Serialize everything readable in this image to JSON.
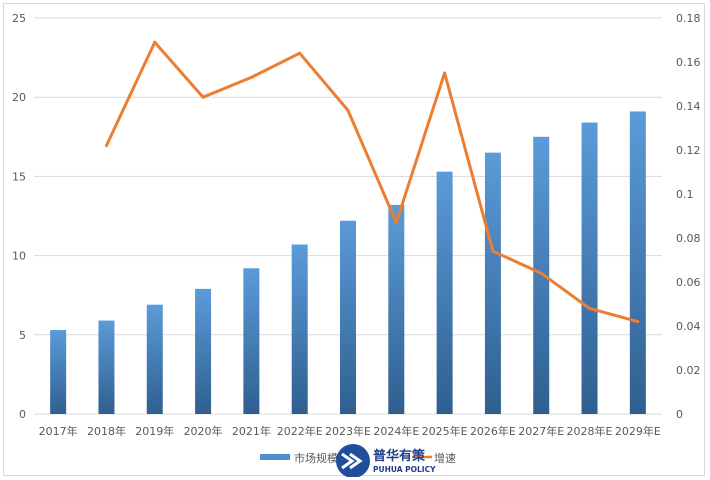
{
  "chart_data": {
    "type": "bar",
    "categories": [
      "2017年",
      "2018年",
      "2019年",
      "2020年",
      "2021年",
      "2022年E",
      "2023年E",
      "2024年E",
      "2025年E",
      "2026年E",
      "2027年E",
      "2028年E",
      "2029年E"
    ],
    "series": [
      {
        "name": "市场规模（亿元）",
        "type": "bar",
        "axis": "left",
        "color": "#4f8fd0",
        "values": [
          5.3,
          5.9,
          6.9,
          7.9,
          9.2,
          10.7,
          12.2,
          13.2,
          15.3,
          16.5,
          17.5,
          18.4,
          19.1
        ]
      },
      {
        "name": "增速",
        "type": "line",
        "axis": "right",
        "color": "#ed7d31",
        "values": [
          null,
          0.122,
          0.169,
          0.144,
          0.153,
          0.164,
          0.138,
          0.087,
          0.155,
          0.074,
          0.064,
          0.048,
          0.042
        ]
      }
    ],
    "y_left": {
      "min": 0,
      "max": 25,
      "ticks": [
        "0",
        "5",
        "10",
        "15",
        "20",
        "25"
      ]
    },
    "y_right": {
      "min": 0,
      "max": 0.18,
      "ticks": [
        "0",
        "0.02",
        "0.04",
        "0.06",
        "0.08",
        "0.1",
        "0.12",
        "0.14",
        "0.16",
        "0.18"
      ]
    },
    "legend": {
      "bar_label": "市场规模",
      "line_label": "增速",
      "position": "bottom"
    },
    "grid": true
  },
  "watermark": {
    "title": "普华有策",
    "subtitle": "PUHUA POLICY"
  }
}
